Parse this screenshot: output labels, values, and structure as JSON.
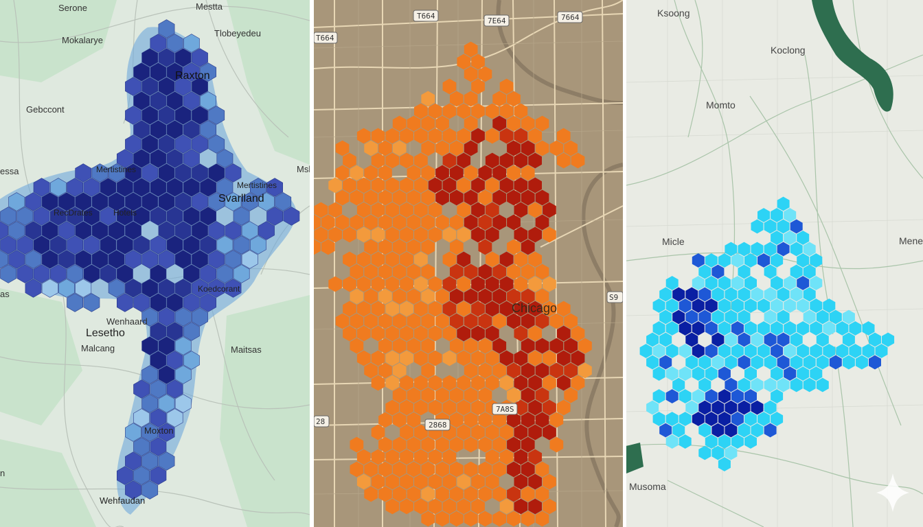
{
  "panels": [
    {
      "name": "blue-hexbin-map",
      "colors": {
        "land": "#dfe9df",
        "park": "#c9e3cc",
        "road": "#b9c2b9",
        "hex_dark": "#1a237e",
        "hex_mid": "#3f51b5",
        "hex_light": "#6fa8dc",
        "hex_pale": "#9cc7ea"
      },
      "labels": {
        "serone": "Serone",
        "mestta": "Mestta",
        "mokalarye": "Mokalarye",
        "tlobey": "Tlobeyedeu",
        "raxton": "Raxton",
        "gebccont": "Gebccont",
        "essa": "essa",
        "msl": "Msl",
        "metalstines": "Mertistines",
        "svarlland": "Svarlland",
        "recdrates": "RecDrates",
        "hotels": "Hotels",
        "koedcorant": "Koedcorant",
        "as": "as",
        "wenhaard": "Wenhaard",
        "lesetho": "Lesetho",
        "malcang": "Malcang",
        "maitsas": "Maitsas",
        "moxton": "Moxton",
        "n": "n",
        "wehfaudan": "Wehfaudan"
      }
    },
    {
      "name": "orange-hexbin-map",
      "colors": {
        "land": "#a8967a",
        "road": "#e8d7b5",
        "river": "#8d7d66",
        "hex_orange": "#f07b1f",
        "hex_red": "#b01c0c"
      },
      "labels": {
        "chicago": "Chicago",
        "shield_1": "T664",
        "shield_2": "7E64",
        "shield_3": "7664",
        "shield_4": "T664",
        "shield_5": "S9",
        "shield_6": "2868",
        "shield_7": "7A8S",
        "shield_8": "28"
      }
    },
    {
      "name": "cyan-hexbin-map",
      "colors": {
        "land": "#e9ebe4",
        "road": "#a9c4a9",
        "water": "#2e6e4f",
        "hex_cyan": "#2dd3f5",
        "hex_blue": "#1e58d6",
        "hex_navy": "#0a1fa3"
      },
      "labels": {
        "ksoong": "Ksoong",
        "koclong": "Koclong",
        "momto": "Momto",
        "micle": "Micle",
        "mene": "Mene",
        "musoma": "Musoma"
      }
    }
  ]
}
